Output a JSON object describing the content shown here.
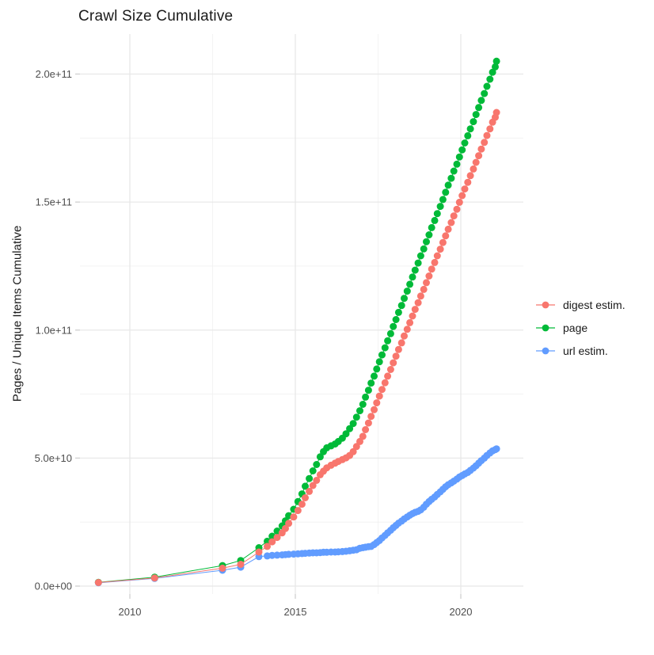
{
  "title": "Crawl Size Cumulative",
  "y_axis_title": "Pages / Unique Items Cumulative",
  "legend": {
    "position": "right",
    "items": [
      {
        "key": "digest",
        "label": "digest estim.",
        "color": "#F8766D"
      },
      {
        "key": "page",
        "label": "page",
        "color": "#00BA38"
      },
      {
        "key": "url",
        "label": "url estim.",
        "color": "#619CFF"
      }
    ]
  },
  "colors": {
    "background": "#ffffff",
    "grid_major": "#e8e8e8",
    "grid_minor": "#f0f0f0",
    "tick_mark": "#d0d0d0",
    "tick_label": "#4d4d4d",
    "text": "#1a1a1a"
  },
  "chart_data": {
    "type": "scatter",
    "title": "Crawl Size Cumulative",
    "xlabel": "",
    "ylabel": "Pages / Unique Items Cumulative",
    "value_unit": "billions of items (1e9); e.g. 205 = 2.05e+11",
    "x_unit": "decimal year",
    "grid": true,
    "legend_position": "right",
    "xlim": [
      2008.5,
      2021.9
    ],
    "ylim_e9": [
      0,
      215
    ],
    "x_ticks": [
      {
        "value": 2010,
        "label": "2010"
      },
      {
        "value": 2015,
        "label": "2015"
      },
      {
        "value": 2020,
        "label": "2020"
      }
    ],
    "x_minor": [
      2012.5,
      2017.5
    ],
    "y_ticks": [
      {
        "value": 0,
        "label": "0.0e+00"
      },
      {
        "value": 50,
        "label": "5.0e+10"
      },
      {
        "value": 100,
        "label": "1.0e+11"
      },
      {
        "value": 150,
        "label": "1.5e+11"
      },
      {
        "value": 200,
        "label": "2.0e+11"
      }
    ],
    "y_minor": [
      25,
      75,
      125,
      175
    ],
    "x": [
      2009.05,
      2010.75,
      2012.8,
      2013.35,
      2013.9,
      2014.15,
      2014.3,
      2014.45,
      2014.6,
      2014.7,
      2014.8,
      2014.95,
      2015.08,
      2015.2,
      2015.3,
      2015.42,
      2015.53,
      2015.64,
      2015.75,
      2015.85,
      2015.95,
      2016.08,
      2016.2,
      2016.3,
      2016.42,
      2016.53,
      2016.64,
      2016.75,
      2016.85,
      2016.95,
      2017.04,
      2017.12,
      2017.21,
      2017.29,
      2017.38,
      2017.46,
      2017.54,
      2017.62,
      2017.71,
      2017.79,
      2017.88,
      2017.96,
      2018.04,
      2018.12,
      2018.21,
      2018.29,
      2018.38,
      2018.46,
      2018.54,
      2018.62,
      2018.71,
      2018.79,
      2018.88,
      2018.96,
      2019.04,
      2019.12,
      2019.21,
      2019.29,
      2019.38,
      2019.46,
      2019.54,
      2019.62,
      2019.71,
      2019.79,
      2019.88,
      2019.96,
      2020.04,
      2020.12,
      2020.21,
      2020.29,
      2020.38,
      2020.46,
      2020.54,
      2020.62,
      2020.71,
      2020.79,
      2020.88,
      2020.96,
      2021.04,
      2021.08
    ],
    "series": [
      {
        "name": "digest estim.",
        "color": "#F8766D",
        "values": [
          1.4,
          3.2,
          7,
          8.5,
          13.3,
          15.5,
          17.3,
          19,
          20.8,
          22.5,
          24.5,
          27,
          29.5,
          32,
          34.5,
          37,
          39.3,
          41.3,
          43.5,
          44.9,
          46.2,
          47.2,
          48,
          48.7,
          49.4,
          50.1,
          51,
          52.5,
          54.5,
          56.5,
          58.5,
          61.1,
          63.7,
          66.3,
          68.9,
          71.6,
          74.2,
          76.8,
          79.4,
          82,
          84.6,
          87.2,
          89.8,
          92.4,
          95,
          97.7,
          100.3,
          102.9,
          105.5,
          108.1,
          110.7,
          113.3,
          115.9,
          118.5,
          121.1,
          123.8,
          126.4,
          129,
          131.6,
          134.2,
          136.8,
          139.4,
          142,
          144.6,
          147.2,
          149.9,
          152.5,
          155.1,
          157.7,
          160.3,
          162.9,
          165.5,
          168.1,
          170.7,
          173.3,
          176,
          178.6,
          181.2,
          183.1,
          185
        ]
      },
      {
        "name": "page",
        "color": "#00BA38",
        "values": [
          1.5,
          3.5,
          8,
          10,
          15,
          17.5,
          19.5,
          21.5,
          23.5,
          25.5,
          27.5,
          30,
          33,
          36,
          39,
          42,
          45,
          47.5,
          50.5,
          52.5,
          54,
          54.8,
          55.5,
          56.5,
          57.8,
          59.5,
          61.5,
          63.5,
          66,
          68.5,
          71,
          73.8,
          76.5,
          79.3,
          82,
          84.8,
          87.6,
          90.3,
          93.1,
          95.8,
          98.6,
          101.4,
          104.1,
          106.9,
          109.6,
          112.4,
          115.2,
          117.9,
          120.7,
          123.4,
          126.2,
          129,
          131.7,
          134.5,
          137.2,
          140,
          142.8,
          145.5,
          148.3,
          151,
          153.8,
          156.6,
          159.3,
          162.1,
          164.8,
          167.6,
          170.4,
          173.1,
          175.9,
          178.6,
          181.4,
          184.2,
          186.9,
          189.7,
          192.4,
          195.2,
          198,
          200.7,
          202.8,
          205
        ]
      },
      {
        "name": "url estim.",
        "color": "#619CFF",
        "values": [
          1.3,
          3,
          6.2,
          7.4,
          11.5,
          11.8,
          12,
          12.1,
          12.2,
          12.3,
          12.4,
          12.5,
          12.6,
          12.7,
          12.8,
          12.9,
          13,
          13,
          13.1,
          13.2,
          13.2,
          13.3,
          13.3,
          13.4,
          13.5,
          13.6,
          13.8,
          14,
          14.2,
          14.8,
          15,
          15.2,
          15.4,
          15.5,
          16.2,
          17,
          17.8,
          18.8,
          19.8,
          20.8,
          21.8,
          22.8,
          23.7,
          24.6,
          25.4,
          26.2,
          27,
          27.7,
          28.3,
          28.8,
          29.2,
          29.8,
          30.8,
          32,
          33,
          33.9,
          34.8,
          35.8,
          36.8,
          37.8,
          38.8,
          39.6,
          40.3,
          41,
          41.8,
          42.6,
          43.2,
          43.8,
          44.4,
          45.2,
          46.1,
          47,
          48,
          49,
          50,
          51,
          52,
          52.8,
          53.3,
          53.6
        ]
      }
    ]
  }
}
